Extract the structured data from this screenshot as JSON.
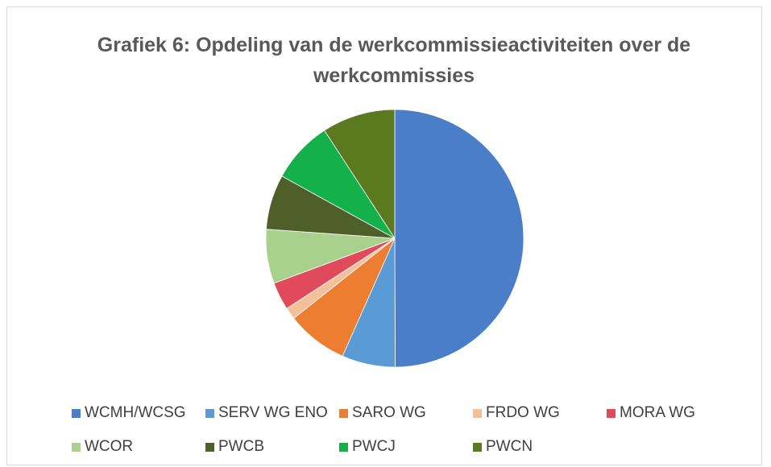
{
  "chart_data": {
    "type": "pie",
    "title": "Grafiek 6: Opdeling van de werkcommissieactiviteiten over de werkcommissies",
    "categories": [
      "WCMH/WCSG",
      "SERV WG ENO",
      "SARO WG",
      "FRDO WG",
      "MORA WG",
      "WCOR",
      "PWCB",
      "PWCJ",
      "PWCN"
    ],
    "values": [
      50,
      6.7,
      7.7,
      1.5,
      3.5,
      6.8,
      6.9,
      7.8,
      9.2
    ],
    "colors": [
      "#4a7ec9",
      "#5b9bd5",
      "#ed7d31",
      "#f4c09a",
      "#e04a5a",
      "#a9d18e",
      "#4e5f2a",
      "#14b04a",
      "#5b7a1f"
    ]
  }
}
